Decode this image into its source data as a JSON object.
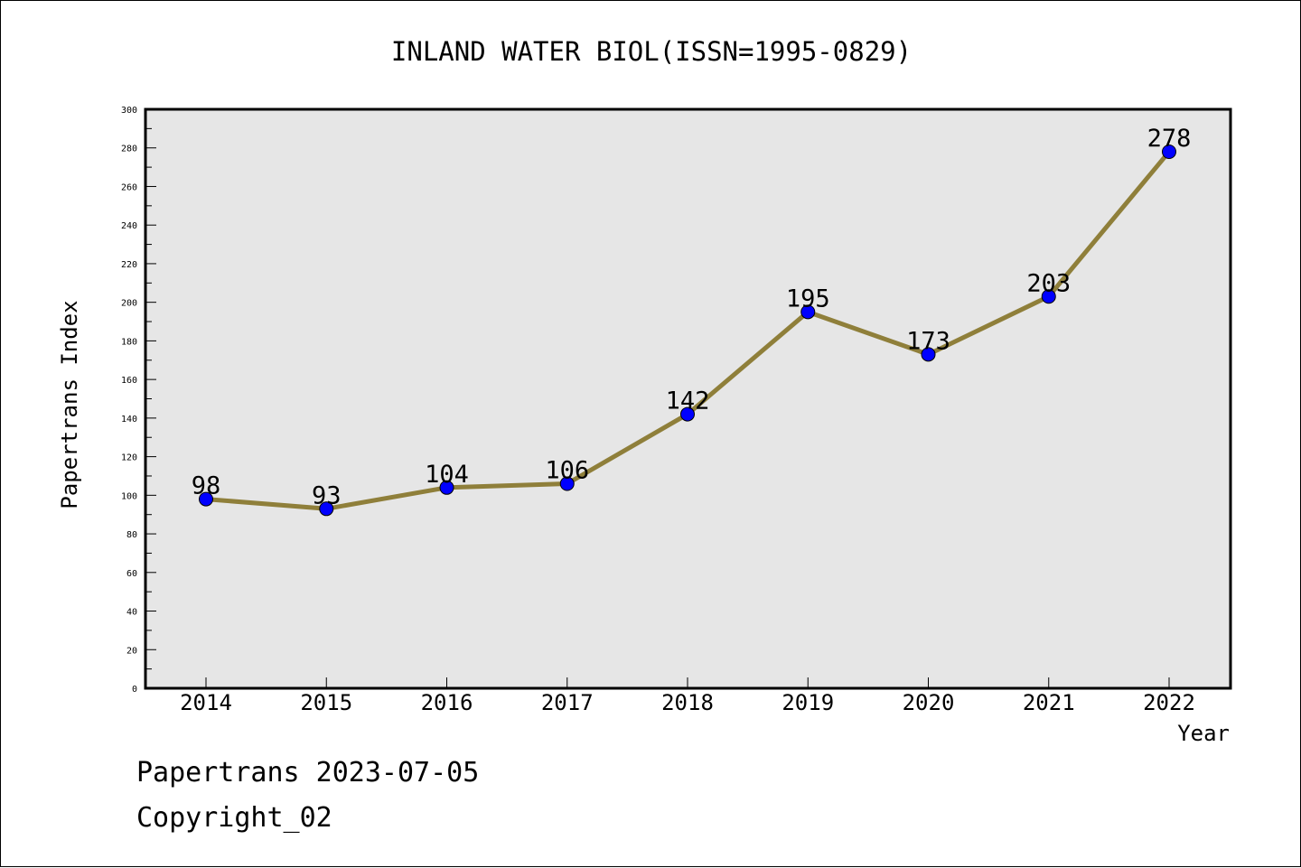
{
  "chart_data": {
    "type": "line",
    "title": "INLAND WATER BIOL(ISSN=1995-0829)",
    "xlabel": "Year",
    "ylabel": "Papertrans Index",
    "categories": [
      "2014",
      "2015",
      "2016",
      "2017",
      "2018",
      "2019",
      "2020",
      "2021",
      "2022"
    ],
    "series": [
      {
        "values": [
          98,
          93,
          104,
          106,
          142,
          195,
          173,
          203,
          278
        ]
      }
    ],
    "data_labels": [
      "98",
      "93",
      "104",
      "106",
      "142",
      "195",
      "173",
      "203",
      "278"
    ],
    "ylim": [
      0,
      300
    ],
    "yticks": [
      0,
      20,
      40,
      60,
      80,
      100,
      120,
      140,
      160,
      180,
      200,
      220,
      240,
      260,
      280,
      300
    ],
    "ytick_labels": [
      "0",
      "20",
      "40",
      "60",
      "80",
      "100",
      "120",
      "140",
      "160",
      "180",
      "200",
      "220",
      "240",
      "260",
      "280",
      "300"
    ],
    "grid": false,
    "line_color": "#8f7f3a",
    "marker_color": "#0000ff",
    "plot_background": "#e6e6e6"
  },
  "footer": {
    "line1": "Papertrans 2023-07-05",
    "line2": "Copyright_02"
  }
}
